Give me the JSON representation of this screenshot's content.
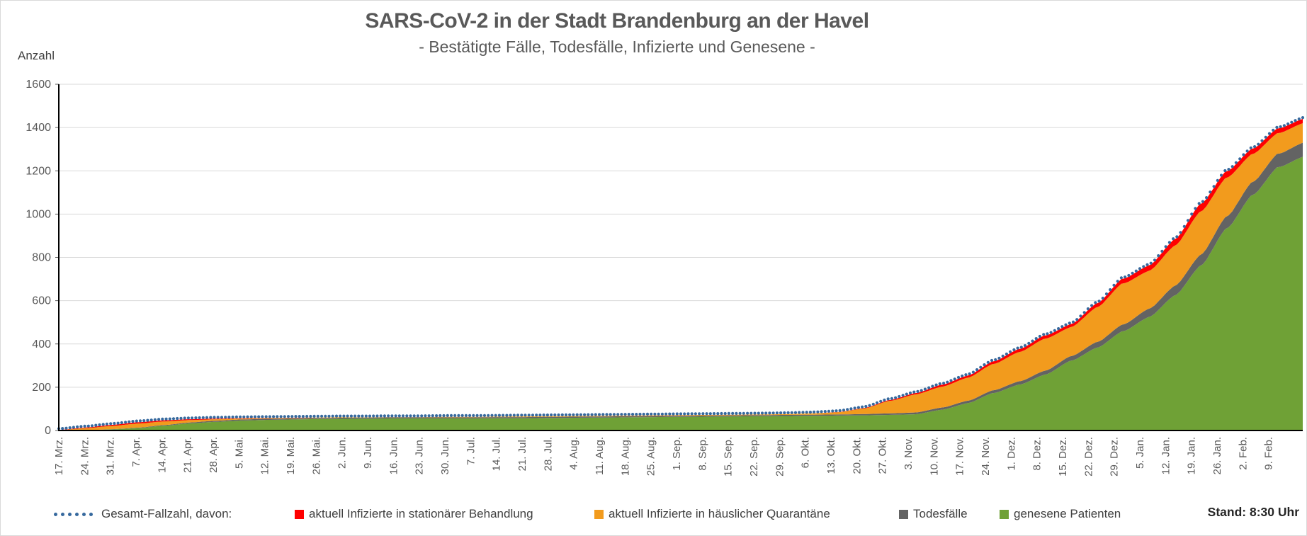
{
  "title": "SARS-CoV-2 in der Stadt Brandenburg an der Havel",
  "subtitle": "- Bestätigte Fälle, Todesfälle, Infizierte und Genesene -",
  "y_axis_title": "Anzahl",
  "status_note": "Stand: 8:30 Uhr",
  "legend": {
    "total_label": "Gesamt-Fallzahl, davon:"
  },
  "chart_data": {
    "type": "area",
    "stacked": true,
    "grid": "horizontal",
    "legend_position": "bottom",
    "ylim": [
      0,
      1600
    ],
    "y_ticks": [
      0,
      200,
      400,
      600,
      800,
      1000,
      1200,
      1400,
      1600
    ],
    "x_tick_labels": [
      "17. Mrz.",
      "24. Mrz.",
      "31. Mrz.",
      "7. Apr.",
      "14. Apr.",
      "21. Apr.",
      "28. Apr.",
      "5. Mai.",
      "12. Mai.",
      "19. Mai.",
      "26. Mai.",
      "2. Jun.",
      "9. Jun.",
      "16. Jun.",
      "23. Jun.",
      "30. Jun.",
      "7. Jul.",
      "14. Jul.",
      "21. Jul.",
      "28. Jul.",
      "4. Aug.",
      "11. Aug.",
      "18. Aug.",
      "25. Aug.",
      "1. Sep.",
      "8. Sep.",
      "15. Sep.",
      "22. Sep.",
      "29. Sep.",
      "6. Okt.",
      "13. Okt.",
      "20. Okt.",
      "27. Okt.",
      "3. Nov.",
      "10. Nov.",
      "17. Nov.",
      "24. Nov.",
      "1. Dez.",
      "8. Dez.",
      "15. Dez.",
      "22. Dez.",
      "29. Dez.",
      "5. Jan.",
      "12. Jan.",
      "19. Jan.",
      "26. Jan.",
      "2. Feb.",
      "9. Feb."
    ],
    "series": [
      {
        "name": "genesene Patienten",
        "color": "#6FA136",
        "values": [
          0,
          1,
          5,
          11,
          22,
          33,
          40,
          46,
          49,
          51,
          53,
          54,
          55,
          56,
          56,
          56,
          56,
          57,
          57,
          58,
          59,
          60,
          61,
          62,
          63,
          64,
          65,
          66,
          67,
          68,
          69,
          70,
          72,
          75,
          95,
          125,
          172,
          211,
          257,
          321,
          381,
          457,
          522,
          621,
          758,
          930,
          1085,
          1216,
          1265
        ]
      },
      {
        "name": "Todesfälle",
        "color": "#636363",
        "values": [
          0,
          0,
          1,
          2,
          3,
          4,
          5,
          5,
          5,
          5,
          5,
          5,
          5,
          5,
          5,
          5,
          5,
          5,
          5,
          5,
          5,
          5,
          5,
          5,
          5,
          5,
          5,
          5,
          5,
          5,
          5,
          6,
          7,
          8,
          10,
          11,
          13,
          15,
          18,
          21,
          26,
          31,
          38,
          44,
          50,
          55,
          60,
          62,
          65
        ]
      },
      {
        "name": "aktuell Infizierte in häuslicher Quarantäne",
        "color": "#F29B1D",
        "values": [
          2,
          10,
          15,
          19,
          17,
          11,
          7,
          4,
          3,
          2,
          2,
          2,
          1,
          1,
          1,
          2,
          2,
          2,
          3,
          3,
          3,
          3,
          3,
          3,
          3,
          3,
          3,
          3,
          4,
          6,
          10,
          25,
          57,
          83,
          96,
          106,
          121,
          135,
          148,
          134,
          160,
          190,
          175,
          185,
          200,
          180,
          130,
          95,
          90
        ]
      },
      {
        "name": "aktuell Infizierte in stationärer Behandlung",
        "color": "#FF0000",
        "values": [
          1,
          3,
          5,
          6,
          5,
          4,
          3,
          2,
          1,
          1,
          0,
          0,
          0,
          0,
          0,
          0,
          0,
          0,
          0,
          0,
          0,
          0,
          0,
          0,
          0,
          0,
          0,
          0,
          0,
          0,
          1,
          2,
          4,
          6,
          9,
          10,
          12,
          14,
          15,
          14,
          18,
          22,
          25,
          30,
          35,
          30,
          25,
          22,
          20
        ]
      }
    ],
    "total_line": {
      "name": "Gesamt-Fallzahl",
      "style": "dotted",
      "color": "#36699E",
      "values": [
        3,
        14,
        26,
        38,
        47,
        52,
        55,
        57,
        58,
        59,
        60,
        61,
        61,
        62,
        62,
        63,
        63,
        64,
        65,
        66,
        67,
        68,
        69,
        70,
        71,
        72,
        73,
        74,
        76,
        79,
        85,
        103,
        140,
        172,
        210,
        252,
        318,
        375,
        438,
        490,
        585,
        700,
        760,
        880,
        1043,
        1195,
        1300,
        1395,
        1440
      ]
    }
  }
}
